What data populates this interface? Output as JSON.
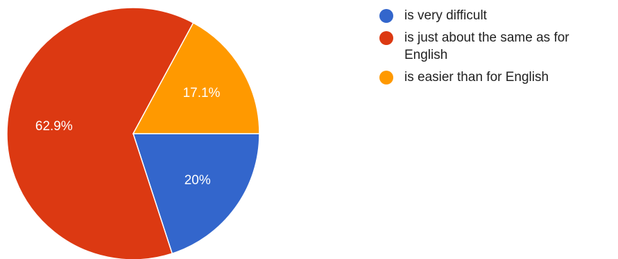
{
  "chart_data": {
    "type": "pie",
    "title": "",
    "legend_position": "right",
    "slices": [
      {
        "label": "is very difficult",
        "value": 20,
        "display": "20%",
        "color": "#3366cc"
      },
      {
        "label": "is just about the same as for English",
        "value": 62.9,
        "display": "62.9%",
        "color": "#dc3912"
      },
      {
        "label": "is easier than for English",
        "value": 17.1,
        "display": "17.1%",
        "color": "#ff9900"
      }
    ]
  }
}
